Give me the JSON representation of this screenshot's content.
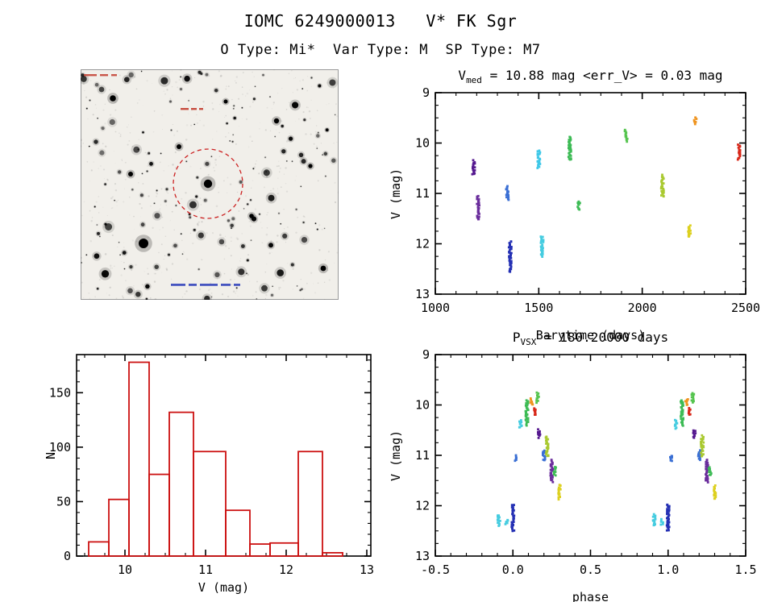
{
  "page": {
    "title": "IOMC 6249000013   V* FK Sgr",
    "subtitle": "O Type: Mi*  Var Type: M  SP Type: M7",
    "background": "#ffffff",
    "text_color": "#000000"
  },
  "finder_chart": {
    "marker_color": "#cc2222"
  },
  "chart_data": [
    {
      "id": "light_curve",
      "type": "scatter",
      "title_main": "V",
      "title_sub": "med",
      "title_rest": " = 10.88 mag <err_V> = 0.03 mag",
      "xlabel": "Barytime (days)",
      "ylabel": "V (mag)",
      "xlim": [
        1000,
        2500
      ],
      "ylim": [
        9,
        13
      ],
      "y_inverted": true,
      "xticks": [
        1000,
        1500,
        2000,
        2500
      ],
      "xtick_labels": [
        "1000",
        "1500",
        "2000",
        "2500"
      ],
      "yticks": [
        9,
        10,
        11,
        12,
        13
      ],
      "ytick_labels": [
        "9",
        "10",
        "11",
        "12",
        "13"
      ],
      "x_minor_step": 100,
      "y_minor_step": 0.25,
      "clusters": [
        {
          "x": 1185,
          "v1": 10.35,
          "v2": 10.62,
          "color": "#55188f"
        },
        {
          "x": 1207,
          "v1": 11.05,
          "v2": 11.52,
          "color": "#6a2d9c"
        },
        {
          "x": 1348,
          "v1": 10.86,
          "v2": 11.12,
          "color": "#3a6fd4"
        },
        {
          "x": 1362,
          "v1": 11.95,
          "v2": 12.55,
          "color": "#2430b4"
        },
        {
          "x": 1500,
          "v1": 10.15,
          "v2": 10.5,
          "color": "#3fc8e8"
        },
        {
          "x": 1516,
          "v1": 11.86,
          "v2": 12.25,
          "color": "#45cce0"
        },
        {
          "x": 1650,
          "v1": 9.88,
          "v2": 10.34,
          "color": "#3dbb55"
        },
        {
          "x": 1694,
          "v1": 11.16,
          "v2": 11.32,
          "color": "#3dbb55"
        },
        {
          "x": 1922,
          "v1": 9.74,
          "v2": 9.96,
          "color": "#55c44e"
        },
        {
          "x": 2098,
          "v1": 10.64,
          "v2": 11.06,
          "color": "#a9c92f"
        },
        {
          "x": 2228,
          "v1": 11.64,
          "v2": 11.86,
          "color": "#ddd01f"
        },
        {
          "x": 2256,
          "v1": 9.5,
          "v2": 9.62,
          "color": "#ef9420"
        },
        {
          "x": 2468,
          "v1": 10.04,
          "v2": 10.32,
          "color": "#d8281a"
        }
      ]
    },
    {
      "id": "magnitude_histogram",
      "type": "histogram",
      "xlabel": "V (mag)",
      "ylabel": "N",
      "xlim": [
        9.4,
        13.05
      ],
      "ylim": [
        0,
        185
      ],
      "y_inverted": false,
      "xticks": [
        10,
        11,
        12,
        13
      ],
      "xtick_labels": [
        "10",
        "11",
        "12",
        "13"
      ],
      "yticks": [
        0,
        50,
        100,
        150
      ],
      "ytick_labels": [
        "0",
        "50",
        "100",
        "150"
      ],
      "x_minor_step": 0.25,
      "y_minor_step": 10,
      "bar_color": "#cc1111",
      "bins": [
        {
          "v_lo": 9.55,
          "v_hi": 9.8,
          "count": 13
        },
        {
          "v_lo": 9.8,
          "v_hi": 10.05,
          "count": 52
        },
        {
          "v_lo": 10.05,
          "v_hi": 10.3,
          "count": 178
        },
        {
          "v_lo": 10.3,
          "v_hi": 10.55,
          "count": 75
        },
        {
          "v_lo": 10.55,
          "v_hi": 10.85,
          "count": 132
        },
        {
          "v_lo": 10.85,
          "v_hi": 11.25,
          "count": 96
        },
        {
          "v_lo": 11.25,
          "v_hi": 11.55,
          "count": 42
        },
        {
          "v_lo": 11.55,
          "v_hi": 11.8,
          "count": 11
        },
        {
          "v_lo": 11.8,
          "v_hi": 12.15,
          "count": 12
        },
        {
          "v_lo": 12.15,
          "v_hi": 12.45,
          "count": 96
        },
        {
          "v_lo": 12.45,
          "v_hi": 12.7,
          "count": 3
        }
      ]
    },
    {
      "id": "phase_curve",
      "type": "scatter",
      "title_main": "P",
      "title_sub": "VSX",
      "title_rest": " = 180.20000 days",
      "xlabel": "phase",
      "ylabel": "V (mag)",
      "xlim": [
        -0.5,
        1.5
      ],
      "ylim": [
        9,
        13
      ],
      "y_inverted": true,
      "xticks": [
        -0.5,
        0.0,
        0.5,
        1.0,
        1.5
      ],
      "xtick_labels": [
        "-0.5",
        "0.0",
        "0.5",
        "1.0",
        "1.5"
      ],
      "yticks": [
        9,
        10,
        11,
        12,
        13
      ],
      "ytick_labels": [
        "9",
        "10",
        "11",
        "12",
        "13"
      ],
      "x_minor_step": 0.1,
      "y_minor_step": 0.25,
      "duplicate_offset": 1.0,
      "clusters": [
        {
          "x": -0.09,
          "v1": 12.18,
          "v2": 12.4,
          "color": "#45cce0"
        },
        {
          "x": -0.04,
          "v1": 12.28,
          "v2": 12.38,
          "color": "#45cce0"
        },
        {
          "x": 0.0,
          "v1": 11.98,
          "v2": 12.5,
          "color": "#2430b4"
        },
        {
          "x": 0.02,
          "v1": 11.0,
          "v2": 11.12,
          "color": "#3a6fd4"
        },
        {
          "x": 0.05,
          "v1": 10.3,
          "v2": 10.46,
          "color": "#45cce0"
        },
        {
          "x": 0.09,
          "v1": 9.9,
          "v2": 10.4,
          "color": "#3dbb55"
        },
        {
          "x": 0.12,
          "v1": 9.88,
          "v2": 10.0,
          "color": "#ef9420"
        },
        {
          "x": 0.14,
          "v1": 10.06,
          "v2": 10.2,
          "color": "#d8281a"
        },
        {
          "x": 0.16,
          "v1": 9.76,
          "v2": 9.94,
          "color": "#55c44e"
        },
        {
          "x": 0.17,
          "v1": 10.5,
          "v2": 10.64,
          "color": "#55188f"
        },
        {
          "x": 0.2,
          "v1": 10.9,
          "v2": 11.1,
          "color": "#3a6fd4"
        },
        {
          "x": 0.22,
          "v1": 10.62,
          "v2": 11.02,
          "color": "#a9c92f"
        },
        {
          "x": 0.25,
          "v1": 11.1,
          "v2": 11.52,
          "color": "#6a2d9c"
        },
        {
          "x": 0.27,
          "v1": 11.24,
          "v2": 11.4,
          "color": "#3dbb55"
        },
        {
          "x": 0.3,
          "v1": 11.6,
          "v2": 11.86,
          "color": "#ddd01f"
        }
      ]
    }
  ]
}
